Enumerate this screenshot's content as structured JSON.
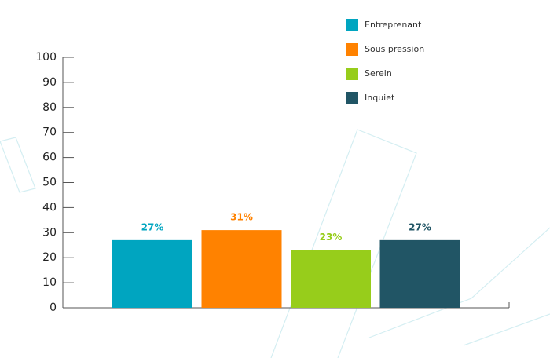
{
  "chart_data": {
    "type": "bar",
    "series": [
      {
        "name": "Entreprenant",
        "color": "#00a5c0",
        "values": [
          27
        ],
        "value_labels": [
          "27%"
        ]
      },
      {
        "name": "Sous pression",
        "color": "#ff8200",
        "values": [
          31
        ],
        "value_labels": [
          "31%"
        ]
      },
      {
        "name": "Serein",
        "color": "#97cd1b",
        "values": [
          23
        ],
        "value_labels": [
          "23%"
        ]
      },
      {
        "name": "Inquiet",
        "color": "#215565",
        "values": [
          27
        ],
        "value_labels": [
          "27%"
        ]
      }
    ],
    "ylim": [
      0,
      100
    ],
    "yticks": [
      0,
      10,
      20,
      30,
      40,
      50,
      60,
      70,
      80,
      90,
      100
    ],
    "legend": "top-right"
  }
}
